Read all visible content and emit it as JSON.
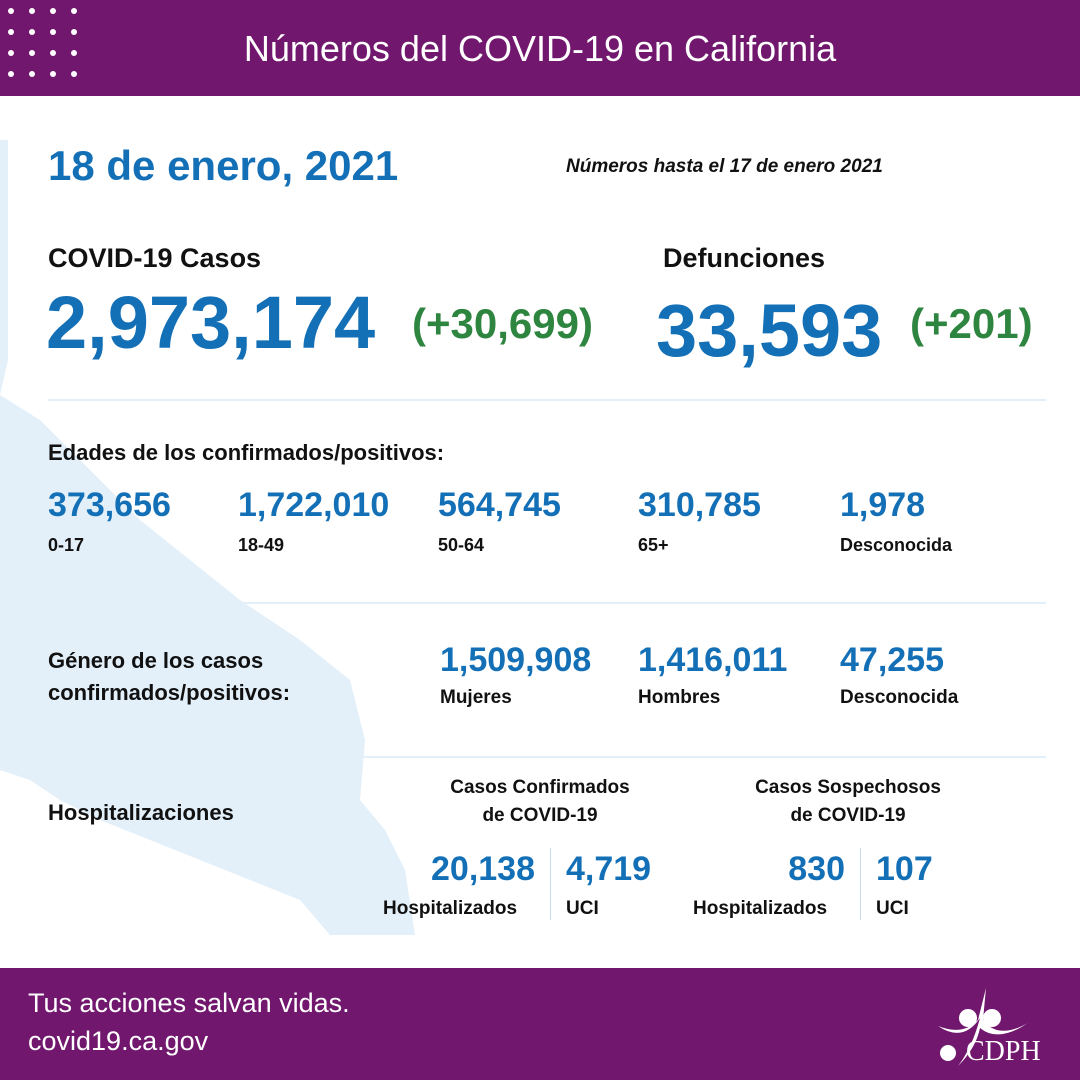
{
  "header": {
    "title": "Números del COVID-19 en California"
  },
  "date": "18 de enero, 2021",
  "as_of": "Números hasta el 17 de enero 2021",
  "cases": {
    "label": "COVID-19 Casos",
    "value": "2,973,174",
    "change": "(+30,699)"
  },
  "deaths": {
    "label": "Defunciones",
    "value": "33,593",
    "change": "(+201)"
  },
  "ages": {
    "title": "Edades de los confirmados/positivos:",
    "items": [
      {
        "value": "373,656",
        "label": "0-17"
      },
      {
        "value": "1,722,010",
        "label": "18-49"
      },
      {
        "value": "564,745",
        "label": "50-64"
      },
      {
        "value": "310,785",
        "label": "65+"
      },
      {
        "value": "1,978",
        "label": "Desconocida"
      }
    ]
  },
  "gender": {
    "title_line1": "Género de los casos",
    "title_line2": "confirmados/positivos:",
    "items": [
      {
        "value": "1,509,908",
        "label": "Mujeres"
      },
      {
        "value": "1,416,011",
        "label": "Hombres"
      },
      {
        "value": "47,255",
        "label": "Desconocida"
      }
    ]
  },
  "hosp": {
    "title": "Hospitalizaciones",
    "confirmed": {
      "title_line1": "Casos Confirmados",
      "title_line2": "de COVID-19",
      "hospitalized": "20,138",
      "hospitalized_label": "Hospitalizados",
      "icu": "4,719",
      "icu_label": "UCI"
    },
    "suspected": {
      "title_line1": "Casos Sospechosos",
      "title_line2": "de COVID-19",
      "hospitalized": "830",
      "hospitalized_label": "Hospitalizados",
      "icu": "107",
      "icu_label": "UCI"
    }
  },
  "footer": {
    "tagline": "Tus acciones salvan vidas.",
    "url": "covid19.ca.gov",
    "logo_text": "CDPH"
  },
  "colors": {
    "purple": "#71176e",
    "blue": "#1470b6",
    "green": "#2e8540",
    "map": "#e3f0fa"
  }
}
